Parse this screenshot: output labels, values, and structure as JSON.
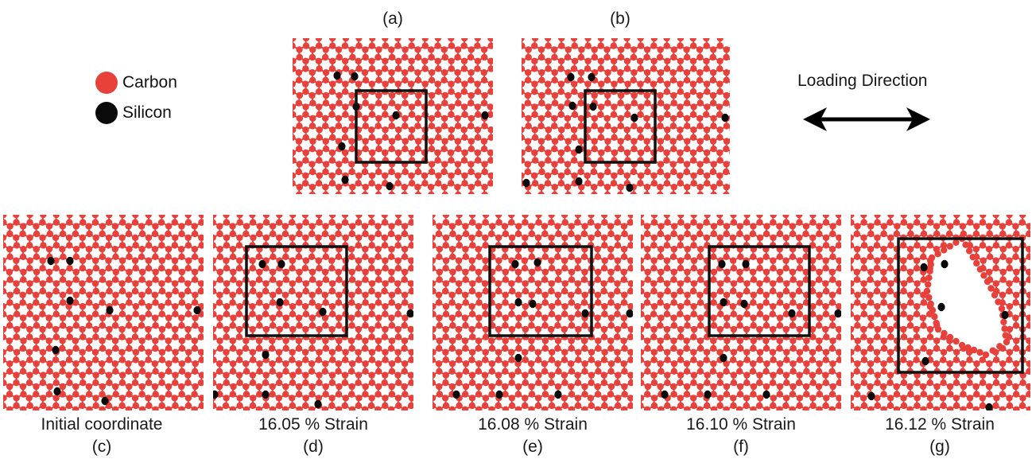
{
  "colors": {
    "carbon": "#e8403a",
    "silicon": "#0a0a0a",
    "bond": "#e8403a",
    "frame": "#111111"
  },
  "legend": {
    "items": [
      {
        "label": "Carbon",
        "color": "#e8403a"
      },
      {
        "label": "Silicon",
        "color": "#0a0a0a"
      }
    ]
  },
  "loading": {
    "label": "Loading Direction"
  },
  "panels": {
    "a": {
      "letter": "(a)",
      "caption": ""
    },
    "b": {
      "letter": "(b)",
      "caption": ""
    },
    "c": {
      "letter": "(c)",
      "caption": "Initial coordinate"
    },
    "d": {
      "letter": "(d)",
      "caption": "16.05 % Strain"
    },
    "e": {
      "letter": "(e)",
      "caption": "16.08 % Strain"
    },
    "f": {
      "letter": "(f)",
      "caption": "16.10 % Strain"
    },
    "g": {
      "letter": "(g)",
      "caption": "16.12 % Strain"
    }
  }
}
